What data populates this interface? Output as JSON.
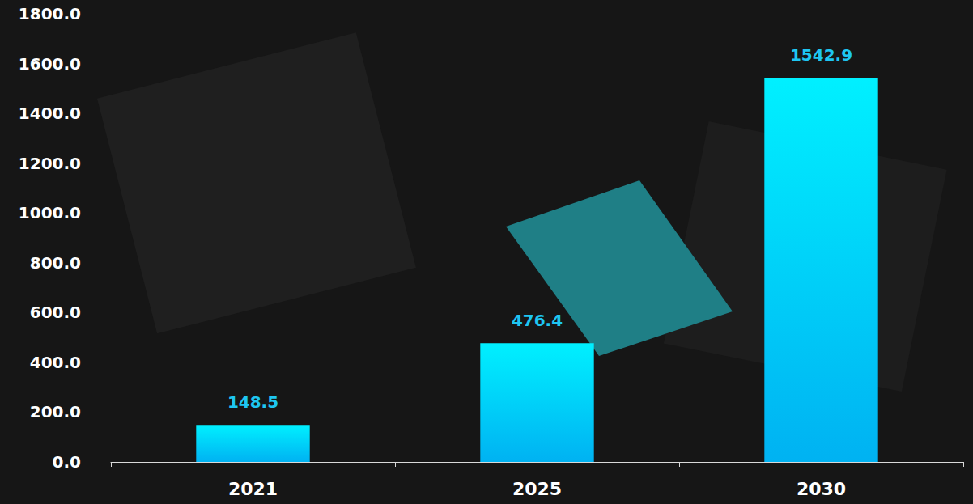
{
  "chart_data": {
    "type": "bar",
    "categories": [
      "2021",
      "2025",
      "2030"
    ],
    "values": [
      148.5,
      476.4,
      1542.9
    ],
    "color": "#00b2f2",
    "ylim": [
      0,
      1800
    ],
    "yticks": [
      {
        "value": 0,
        "label": "0.0"
      },
      {
        "value": 200,
        "label": "200.0"
      },
      {
        "value": 400,
        "label": "400.0"
      },
      {
        "value": 600,
        "label": "600.0"
      },
      {
        "value": 800,
        "label": "800.0"
      },
      {
        "value": 1000,
        "label": "1000.0"
      },
      {
        "value": 1200,
        "label": "1200.0"
      },
      {
        "value": 1400,
        "label": "1400.0"
      },
      {
        "value": 1600,
        "label": "1600.0"
      },
      {
        "value": 1800,
        "label": "1800.0"
      }
    ],
    "grid": false,
    "data_labels": true
  }
}
